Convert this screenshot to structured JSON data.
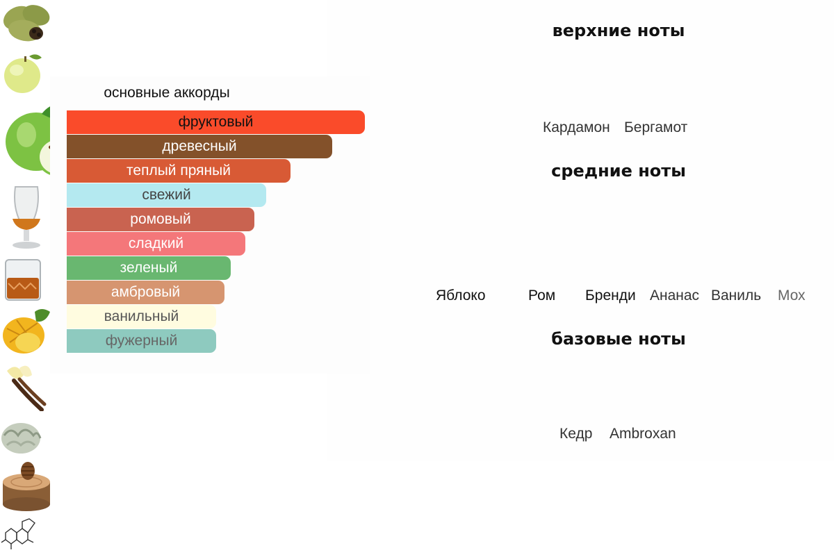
{
  "accords": {
    "title": "основные аккорды",
    "items": [
      {
        "label": "фруктовый",
        "color": "#fa4b2a",
        "text_color": "#111111",
        "share": 1.0
      },
      {
        "label": "древесный",
        "color": "#83512a",
        "text_color": "#ffffff",
        "share": 0.89
      },
      {
        "label": "теплый пряный",
        "color": "#d85a35",
        "text_color": "#ffffff",
        "share": 0.75
      },
      {
        "label": "свежий",
        "color": "#b4e9f0",
        "text_color": "#444444",
        "share": 0.67
      },
      {
        "label": "ромовый",
        "color": "#c96350",
        "text_color": "#ffffff",
        "share": 0.63
      },
      {
        "label": "сладкий",
        "color": "#f4777a",
        "text_color": "#ffffff",
        "share": 0.6
      },
      {
        "label": "зеленый",
        "color": "#69b770",
        "text_color": "#ffffff",
        "share": 0.55
      },
      {
        "label": "амбровый",
        "color": "#d69570",
        "text_color": "#ffffff",
        "share": 0.53
      },
      {
        "label": "ванильный",
        "color": "#fffce0",
        "text_color": "#555555",
        "share": 0.5
      },
      {
        "label": "фужерный",
        "color": "#8ecabf",
        "text_color": "#666666",
        "share": 0.5
      }
    ]
  },
  "notes": {
    "top": {
      "title": "верхние ноты",
      "items": [
        {
          "label": "Кардамон",
          "icon": "cardamom-icon"
        },
        {
          "label": "Бергамот",
          "icon": "bergamot-icon"
        }
      ]
    },
    "middle": {
      "title": "средние ноты",
      "items": [
        {
          "label": "Яблоко",
          "icon": "apple-icon"
        },
        {
          "label": "Ром",
          "icon": "rum-glass-icon"
        },
        {
          "label": "Бренди",
          "icon": "brandy-glass-icon"
        },
        {
          "label": "Ананас",
          "icon": "pineapple-icon"
        },
        {
          "label": "Ваниль",
          "icon": "vanilla-icon"
        },
        {
          "label": "Мох",
          "icon": "moss-icon"
        }
      ]
    },
    "base": {
      "title": "базовые ноты",
      "items": [
        {
          "label": "Кедр",
          "icon": "cedar-icon"
        },
        {
          "label": "Ambroxan",
          "icon": "ambroxan-molecule-icon"
        }
      ]
    }
  }
}
